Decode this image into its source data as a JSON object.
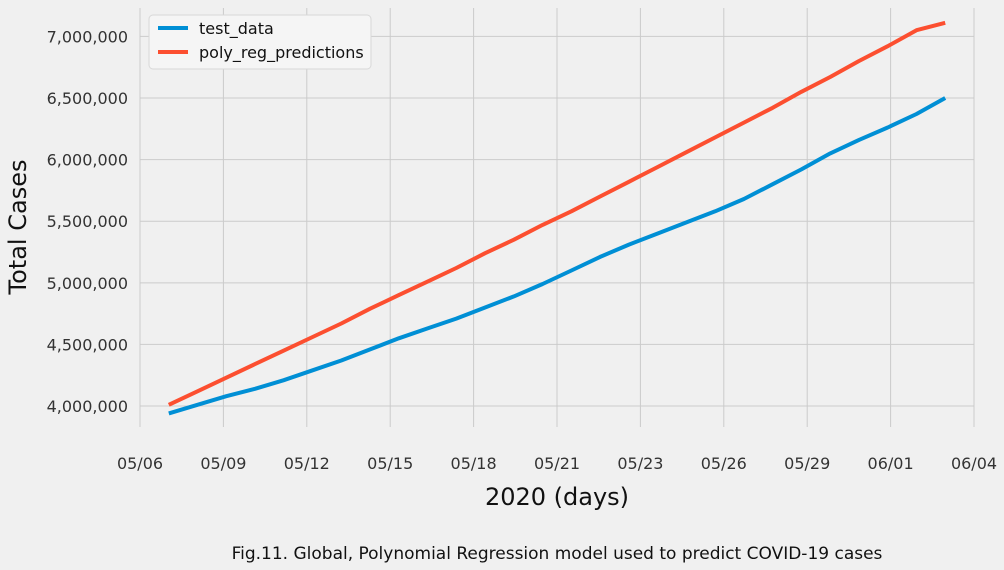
{
  "chart_data": {
    "type": "line",
    "title": "",
    "xlabel": "2020 (days)",
    "ylabel": "Total Cases",
    "caption": "Fig.11. Global, Polynomial Regression model used to predict COVID-19 cases",
    "x_ticks": [
      "05/06",
      "05/09",
      "05/12",
      "05/15",
      "05/18",
      "05/21",
      "05/23",
      "05/26",
      "05/29",
      "06/01",
      "06/04"
    ],
    "y_ticks": [
      "4,000,000",
      "4,500,000",
      "5,000,000",
      "5,500,000",
      "6,000,000",
      "6,500,000",
      "7,000,000"
    ],
    "y_tick_values": [
      4000000,
      4500000,
      5000000,
      5500000,
      6000000,
      6500000,
      7000000
    ],
    "xlim": [
      "2020-05-06",
      "2020-06-04"
    ],
    "ylim": [
      3830000,
      7230000
    ],
    "grid": true,
    "legend_position": "top-left",
    "x": [
      "2020-05-07",
      "2020-05-08",
      "2020-05-09",
      "2020-05-10",
      "2020-05-11",
      "2020-05-12",
      "2020-05-13",
      "2020-05-14",
      "2020-05-15",
      "2020-05-16",
      "2020-05-17",
      "2020-05-18",
      "2020-05-19",
      "2020-05-20",
      "2020-05-21",
      "2020-05-22",
      "2020-05-23",
      "2020-05-24",
      "2020-05-25",
      "2020-05-26",
      "2020-05-27",
      "2020-05-28",
      "2020-05-29",
      "2020-05-30",
      "2020-05-31",
      "2020-06-01",
      "2020-06-02",
      "2020-06-03"
    ],
    "series": [
      {
        "name": "test_data",
        "color": "#008fd5",
        "values": [
          3940000,
          4010000,
          4080000,
          4140000,
          4210000,
          4290000,
          4370000,
          4460000,
          4550000,
          4630000,
          4710000,
          4800000,
          4890000,
          4990000,
          5100000,
          5210000,
          5310000,
          5400000,
          5490000,
          5580000,
          5680000,
          5800000,
          5920000,
          6050000,
          6160000,
          6260000,
          6370000,
          6500000
        ]
      },
      {
        "name": "poly_reg_predictions",
        "color": "#fc4f30",
        "values": [
          4010000,
          4120000,
          4230000,
          4340000,
          4450000,
          4560000,
          4670000,
          4790000,
          4900000,
          5010000,
          5120000,
          5240000,
          5350000,
          5470000,
          5580000,
          5700000,
          5820000,
          5940000,
          6060000,
          6180000,
          6300000,
          6420000,
          6550000,
          6670000,
          6800000,
          6920000,
          7050000,
          7110000
        ]
      }
    ]
  }
}
